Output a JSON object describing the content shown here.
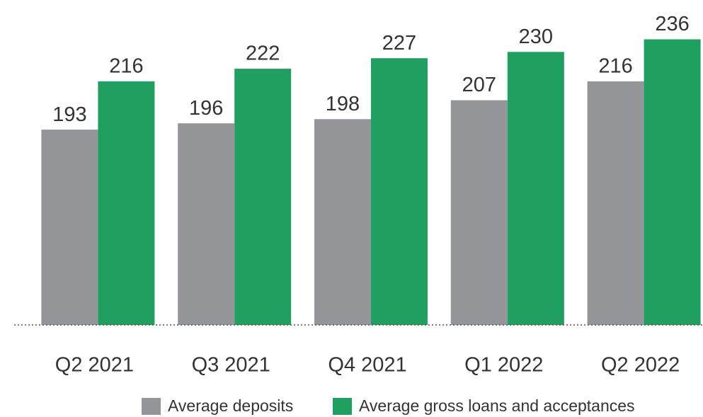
{
  "chart_data": {
    "type": "bar",
    "categories": [
      "Q2 2021",
      "Q3 2021",
      "Q4 2021",
      "Q1 2022",
      "Q2 2022"
    ],
    "series": [
      {
        "name": "Average deposits",
        "color": "#939598",
        "values": [
          193,
          196,
          198,
          207,
          216
        ]
      },
      {
        "name": "Average gross loans and acceptances",
        "color": "#1fa060",
        "values": [
          216,
          222,
          227,
          230,
          236
        ]
      }
    ],
    "ylim": [
      100,
      250
    ]
  }
}
